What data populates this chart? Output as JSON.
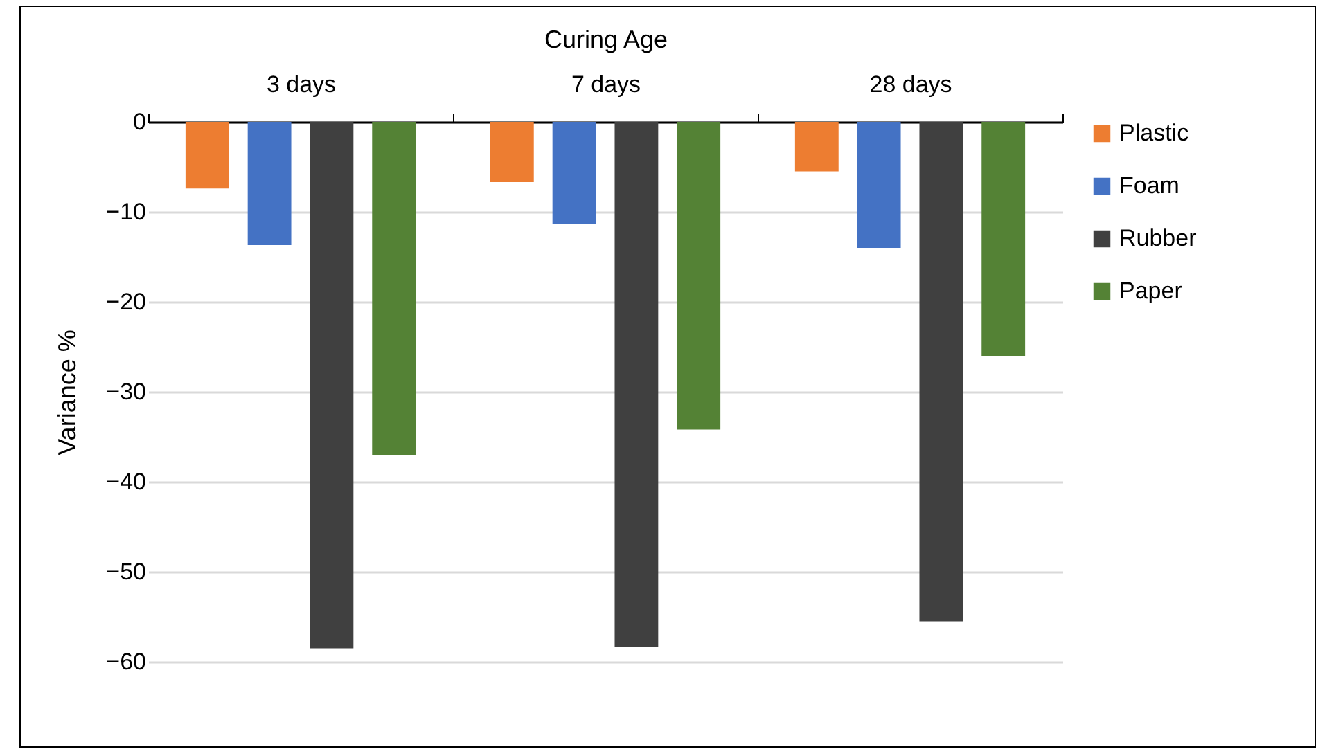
{
  "chart_data": {
    "type": "bar",
    "xlabel": "Curing Age",
    "ylabel": "Variance %",
    "categories": [
      "3 days",
      "7 days",
      "28 days"
    ],
    "series": [
      {
        "name": "Plastic",
        "color": "#ed7d31",
        "values": [
          -7.4,
          -6.7,
          -5.5
        ]
      },
      {
        "name": "Foam",
        "color": "#4472c4",
        "values": [
          -13.7,
          -11.3,
          -14.0
        ]
      },
      {
        "name": "Rubber",
        "color": "#404040",
        "values": [
          -58.5,
          -58.3,
          -55.5
        ]
      },
      {
        "name": "Paper",
        "color": "#548235",
        "values": [
          -37.0,
          -34.2,
          -26.0
        ]
      }
    ],
    "ylim": [
      -60,
      0
    ],
    "yticks": [
      -60,
      -50,
      -40,
      -30,
      -20,
      -10,
      0
    ],
    "grid": "y",
    "legend": "right"
  }
}
